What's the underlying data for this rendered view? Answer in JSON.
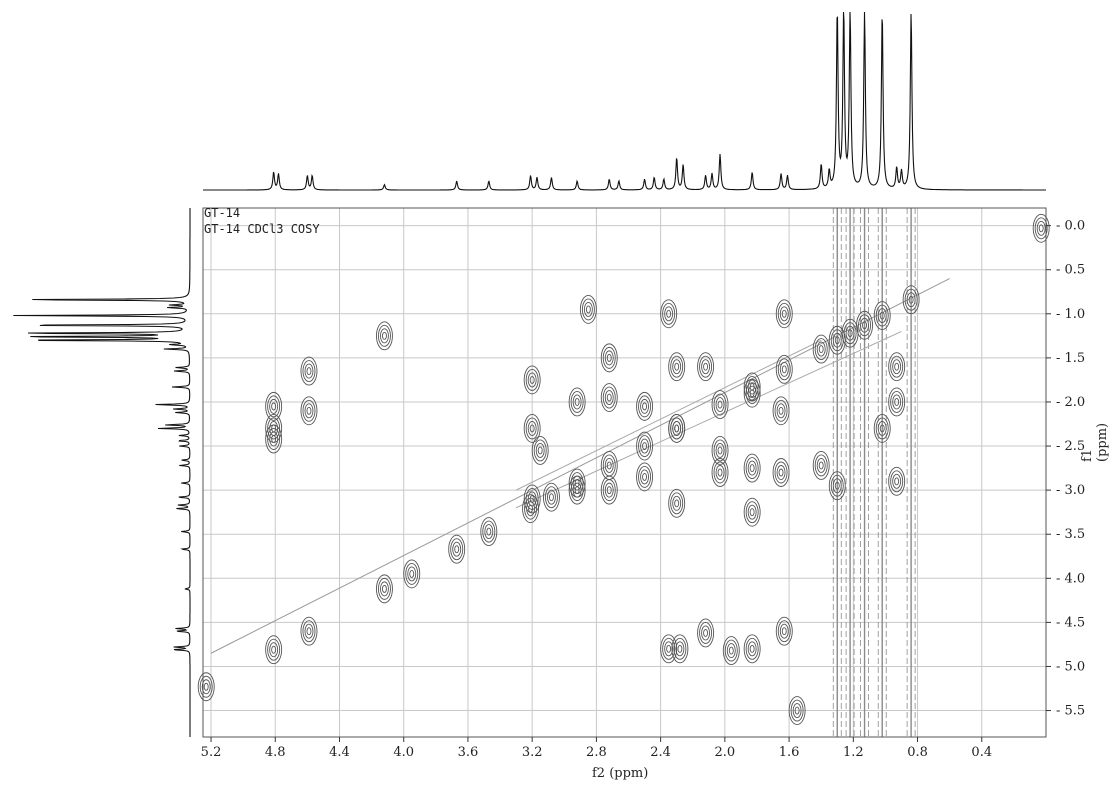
{
  "chart_data": {
    "type": "contour",
    "sample_label": "GT-14",
    "experiment_label": "GT-14 CDCl3 COSY",
    "xlabel": "f2 (ppm)",
    "ylabel": "f1 (ppm)",
    "xlim": [
      5.25,
      0.0
    ],
    "ylim": [
      -0.2,
      5.8
    ],
    "x_ticks": [
      "5.2",
      "4.8",
      "4.4",
      "4.0",
      "3.6",
      "3.2",
      "2.8",
      "2.4",
      "2.0",
      "1.6",
      "1.2",
      "0.8",
      "0.4"
    ],
    "y_ticks": [
      "0.0",
      "0.5",
      "1.0",
      "1.5",
      "2.0",
      "2.5",
      "3.0",
      "3.5",
      "4.0",
      "4.5",
      "5.0",
      "5.5"
    ],
    "grid": true,
    "projection_peaks": [
      {
        "ppm": 4.81,
        "intensity": 0.1
      },
      {
        "ppm": 4.78,
        "intensity": 0.09
      },
      {
        "ppm": 4.6,
        "intensity": 0.08
      },
      {
        "ppm": 4.57,
        "intensity": 0.08
      },
      {
        "ppm": 4.12,
        "intensity": 0.03
      },
      {
        "ppm": 3.67,
        "intensity": 0.05
      },
      {
        "ppm": 3.47,
        "intensity": 0.05
      },
      {
        "ppm": 3.21,
        "intensity": 0.08
      },
      {
        "ppm": 3.17,
        "intensity": 0.07
      },
      {
        "ppm": 3.08,
        "intensity": 0.07
      },
      {
        "ppm": 2.92,
        "intensity": 0.05
      },
      {
        "ppm": 2.72,
        "intensity": 0.06
      },
      {
        "ppm": 2.66,
        "intensity": 0.05
      },
      {
        "ppm": 2.5,
        "intensity": 0.06
      },
      {
        "ppm": 2.44,
        "intensity": 0.07
      },
      {
        "ppm": 2.38,
        "intensity": 0.06
      },
      {
        "ppm": 2.3,
        "intensity": 0.18
      },
      {
        "ppm": 2.26,
        "intensity": 0.14
      },
      {
        "ppm": 2.12,
        "intensity": 0.08
      },
      {
        "ppm": 2.08,
        "intensity": 0.09
      },
      {
        "ppm": 2.03,
        "intensity": 0.2
      },
      {
        "ppm": 1.83,
        "intensity": 0.1
      },
      {
        "ppm": 1.65,
        "intensity": 0.09
      },
      {
        "ppm": 1.61,
        "intensity": 0.08
      },
      {
        "ppm": 1.4,
        "intensity": 0.14
      },
      {
        "ppm": 1.35,
        "intensity": 0.1
      },
      {
        "ppm": 1.3,
        "intensity": 1.0
      },
      {
        "ppm": 1.26,
        "intensity": 1.0
      },
      {
        "ppm": 1.22,
        "intensity": 1.0
      },
      {
        "ppm": 1.13,
        "intensity": 1.0
      },
      {
        "ppm": 1.02,
        "intensity": 1.0
      },
      {
        "ppm": 0.93,
        "intensity": 0.12
      },
      {
        "ppm": 0.9,
        "intensity": 0.1
      },
      {
        "ppm": 0.84,
        "intensity": 1.0
      }
    ],
    "cross_peaks": [
      {
        "f2": 4.81,
        "f1": 4.81
      },
      {
        "f2": 4.59,
        "f1": 4.6
      },
      {
        "f2": 4.12,
        "f1": 4.12
      },
      {
        "f2": 3.95,
        "f1": 3.95
      },
      {
        "f2": 3.67,
        "f1": 3.67
      },
      {
        "f2": 3.47,
        "f1": 3.47
      },
      {
        "f2": 3.21,
        "f1": 3.21
      },
      {
        "f2": 3.08,
        "f1": 3.08
      },
      {
        "f2": 2.92,
        "f1": 2.92
      },
      {
        "f2": 2.72,
        "f1": 2.72
      },
      {
        "f2": 2.5,
        "f1": 2.5
      },
      {
        "f2": 2.3,
        "f1": 2.3
      },
      {
        "f2": 2.03,
        "f1": 2.03
      },
      {
        "f2": 1.83,
        "f1": 1.83
      },
      {
        "f2": 1.63,
        "f1": 1.63
      },
      {
        "f2": 1.4,
        "f1": 1.4
      },
      {
        "f2": 1.3,
        "f1": 1.3
      },
      {
        "f2": 1.22,
        "f1": 1.22
      },
      {
        "f2": 1.13,
        "f1": 1.13
      },
      {
        "f2": 1.02,
        "f1": 1.02
      },
      {
        "f2": 0.84,
        "f1": 0.84
      },
      {
        "f2": 0.03,
        "f1": 0.03
      },
      {
        "f2": 5.23,
        "f1": 5.23
      },
      {
        "f2": 4.81,
        "f1": 2.05
      },
      {
        "f2": 4.81,
        "f1": 2.3
      },
      {
        "f2": 4.81,
        "f1": 2.42
      },
      {
        "f2": 4.59,
        "f1": 1.65
      },
      {
        "f2": 4.59,
        "f1": 2.1
      },
      {
        "f2": 4.12,
        "f1": 1.25
      },
      {
        "f2": 2.85,
        "f1": 0.95
      },
      {
        "f2": 2.35,
        "f1": 1.0
      },
      {
        "f2": 1.63,
        "f1": 1.0
      },
      {
        "f2": 3.2,
        "f1": 1.75
      },
      {
        "f2": 3.2,
        "f1": 2.3
      },
      {
        "f2": 3.2,
        "f1": 3.1
      },
      {
        "f2": 3.15,
        "f1": 2.55
      },
      {
        "f2": 2.92,
        "f1": 2.0
      },
      {
        "f2": 2.92,
        "f1": 3.0
      },
      {
        "f2": 2.72,
        "f1": 1.5
      },
      {
        "f2": 2.72,
        "f1": 1.95
      },
      {
        "f2": 2.72,
        "f1": 3.0
      },
      {
        "f2": 2.5,
        "f1": 2.05
      },
      {
        "f2": 2.5,
        "f1": 2.85
      },
      {
        "f2": 2.3,
        "f1": 1.6
      },
      {
        "f2": 2.3,
        "f1": 2.3
      },
      {
        "f2": 2.3,
        "f1": 3.15
      },
      {
        "f2": 2.12,
        "f1": 1.6
      },
      {
        "f2": 2.03,
        "f1": 2.55
      },
      {
        "f2": 2.03,
        "f1": 2.8
      },
      {
        "f2": 1.83,
        "f1": 1.9
      },
      {
        "f2": 1.83,
        "f1": 2.75
      },
      {
        "f2": 1.83,
        "f1": 3.25
      },
      {
        "f2": 1.65,
        "f1": 2.1
      },
      {
        "f2": 1.65,
        "f1": 2.8
      },
      {
        "f2": 1.4,
        "f1": 2.72
      },
      {
        "f2": 1.3,
        "f1": 2.95
      },
      {
        "f2": 1.02,
        "f1": 2.3
      },
      {
        "f2": 0.93,
        "f1": 1.6
      },
      {
        "f2": 0.93,
        "f1": 2.0
      },
      {
        "f2": 0.93,
        "f1": 2.9
      },
      {
        "f2": 2.35,
        "f1": 4.8
      },
      {
        "f2": 2.28,
        "f1": 4.8
      },
      {
        "f2": 2.12,
        "f1": 4.62
      },
      {
        "f2": 1.96,
        "f1": 4.82
      },
      {
        "f2": 1.83,
        "f1": 4.8
      },
      {
        "f2": 1.63,
        "f1": 4.6
      },
      {
        "f2": 1.55,
        "f1": 5.5
      }
    ],
    "vertical_ridges_f2": [
      1.3,
      1.22,
      1.13,
      1.02,
      0.84
    ]
  }
}
